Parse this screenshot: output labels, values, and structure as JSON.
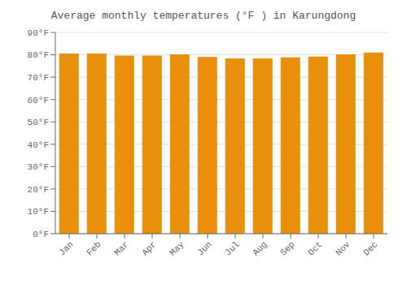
{
  "chart_data": {
    "type": "bar",
    "title": "Average monthly temperatures (°F ) in Karungdong",
    "categories": [
      "Jan",
      "Feb",
      "Mar",
      "Apr",
      "May",
      "Jun",
      "Jul",
      "Aug",
      "Sep",
      "Oct",
      "Nov",
      "Dec"
    ],
    "values": [
      80.6,
      80.6,
      79.7,
      79.7,
      80.2,
      79.0,
      78.4,
      78.4,
      78.8,
      79.2,
      80.2,
      81.0
    ],
    "color": "#E8900A",
    "ylim": [
      0,
      90
    ],
    "yticks": [
      {
        "value": 0,
        "label": "0°F"
      },
      {
        "value": 10,
        "label": "10°F"
      },
      {
        "value": 20,
        "label": "20°F"
      },
      {
        "value": 30,
        "label": "30°F"
      },
      {
        "value": 40,
        "label": "40°F"
      },
      {
        "value": 50,
        "label": "50°F"
      },
      {
        "value": 60,
        "label": "60°F"
      },
      {
        "value": 70,
        "label": "70°F"
      },
      {
        "value": 80,
        "label": "80°F"
      },
      {
        "value": 90,
        "label": "90°F"
      }
    ],
    "grid": true
  }
}
